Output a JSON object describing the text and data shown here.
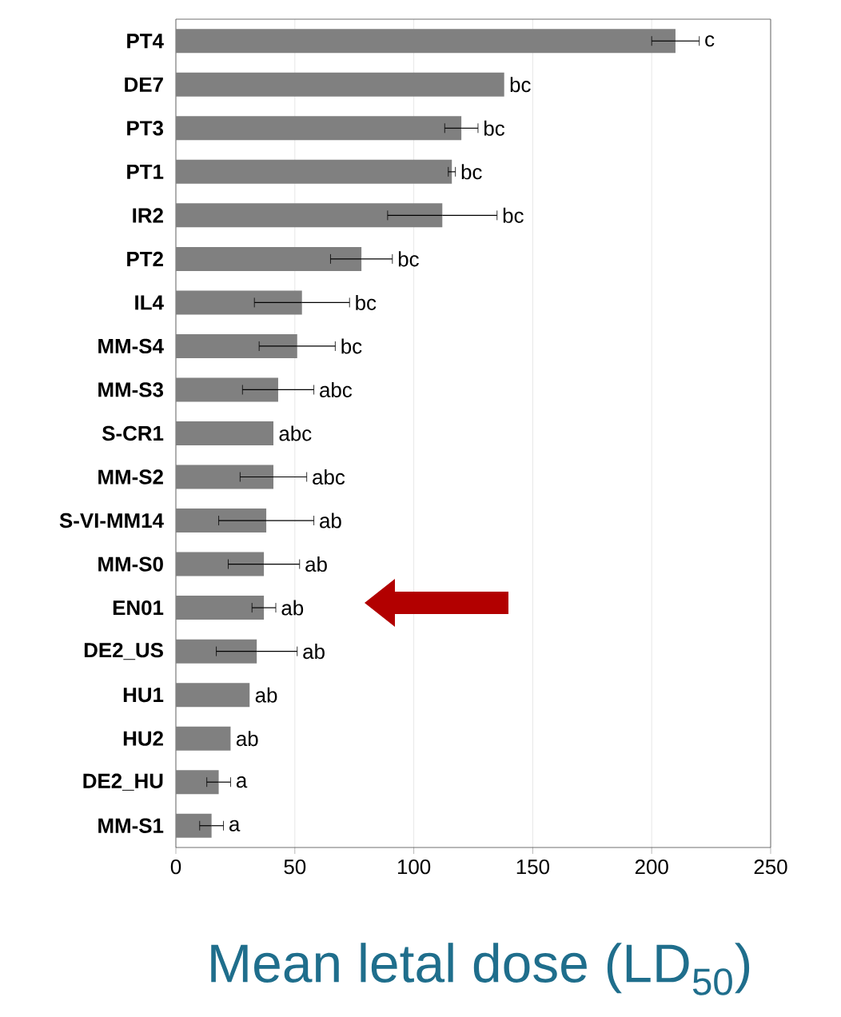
{
  "chart_data": {
    "type": "bar",
    "orientation": "horizontal",
    "xlabel": "Mean letal dose (LD$_{50}$)",
    "categories": [
      "PT4",
      "DE7",
      "PT3",
      "PT1",
      "IR2",
      "PT2",
      "IL4",
      "MM-S4",
      "MM-S3",
      "S-CR1",
      "MM-S2",
      "S-VI-MM14",
      "MM-S0",
      "EN01",
      "DE2_US",
      "HU1",
      "HU2",
      "DE2_HU",
      "MM-S1"
    ],
    "values": [
      210,
      138,
      120,
      116,
      112,
      78,
      53,
      51,
      43,
      41,
      41,
      38,
      37,
      37,
      34,
      31,
      23,
      18,
      15
    ],
    "errors": [
      10,
      null,
      7,
      1.5,
      23,
      13,
      20,
      16,
      15,
      null,
      14,
      20,
      15,
      5,
      17,
      null,
      null,
      5,
      5
    ],
    "value_labels": [
      "c",
      "bc",
      "bc",
      "bc",
      "bc",
      "bc",
      "bc",
      "bc",
      "abc",
      "abc",
      "abc",
      "ab",
      "ab",
      "ab",
      "ab",
      "ab",
      "ab",
      "a",
      "a"
    ],
    "color": "#808080",
    "xlim": [
      0,
      250
    ],
    "xticks": [
      0,
      50,
      100,
      150,
      200,
      250
    ],
    "grid": "x"
  }
}
